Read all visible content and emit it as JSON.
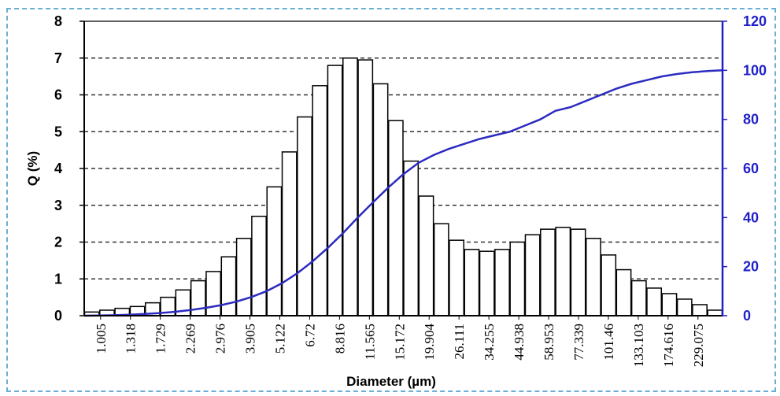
{
  "chart_data": {
    "type": "bar",
    "xlabel": "Diameter (µm)",
    "ylabel": "Q (%)",
    "ylim": [
      0,
      8
    ],
    "y2lim": [
      0,
      120
    ],
    "grid": "dashed horizontal",
    "colors": {
      "bars": "#ffffff",
      "bar_edge": "#000000",
      "cumulative_line": "#2b2bc0",
      "right_axis": "#2020c8"
    },
    "y_ticks": [
      "0",
      "1",
      "2",
      "3",
      "4",
      "5",
      "6",
      "7",
      "8"
    ],
    "y2_ticks": [
      "0",
      "20",
      "40",
      "60",
      "80",
      "100",
      "120"
    ],
    "x_tick_labels": [
      "1.005",
      "1.318",
      "1.729",
      "2.269",
      "2.976",
      "3.905",
      "5.122",
      "6.72",
      "8.816",
      "11.565",
      "15.172",
      "19.904",
      "26.111",
      "34.255",
      "44.938",
      "58.953",
      "77.339",
      "101.46",
      "133.103",
      "174.616",
      "229.075"
    ],
    "series": [
      {
        "type": "bar",
        "values": [
          0.1,
          0.15,
          0.2,
          0.25,
          0.35,
          0.5,
          0.7,
          0.95,
          1.2,
          1.6,
          2.1,
          2.7,
          3.5,
          4.45,
          5.4,
          6.25,
          6.8,
          7.0,
          6.95,
          6.3,
          5.3,
          4.2,
          3.25,
          2.5,
          2.05,
          1.8,
          1.75,
          1.8,
          2.0,
          2.2,
          2.35,
          2.4,
          2.35,
          2.1,
          1.65,
          1.25,
          0.95,
          0.75,
          0.6,
          0.45,
          0.3,
          0.15
        ]
      },
      {
        "type": "line",
        "axis": "right",
        "values": [
          0,
          0.1,
          0.2,
          0.4,
          0.7,
          1.1,
          1.6,
          2.3,
          3.2,
          4.3,
          5.7,
          7.6,
          10.0,
          13.2,
          17.2,
          22.0,
          27.5,
          33.5,
          40.0,
          46.2,
          52.2,
          57.7,
          62.3,
          65.5,
          68.0,
          70.0,
          72.0,
          73.5,
          75.0,
          77.5,
          80.0,
          83.5,
          85.0,
          87.5,
          90.0,
          92.5,
          94.5,
          96.0,
          97.5,
          98.5,
          99.2,
          99.7,
          100.0
        ]
      }
    ]
  }
}
